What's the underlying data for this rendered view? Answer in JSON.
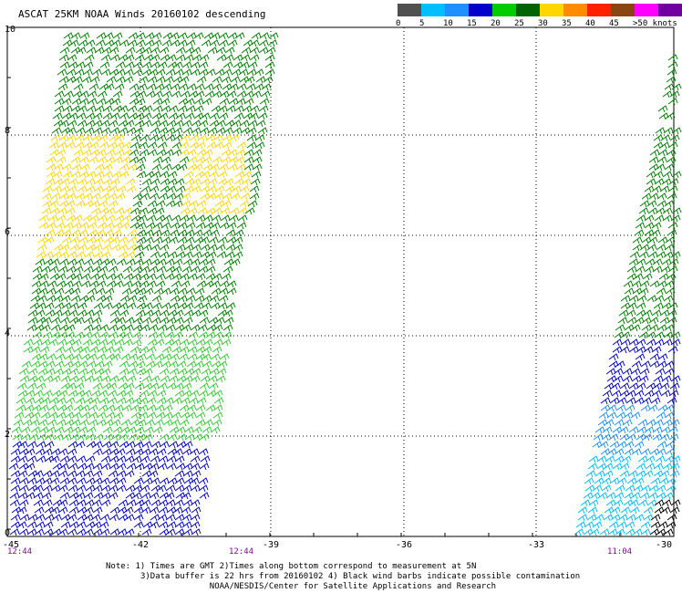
{
  "title": "ASCAT 25KM NOAA Winds 20160102 descending",
  "legend": {
    "colors": [
      "#505050",
      "#00bfff",
      "#1e90ff",
      "#0000cd",
      "#00cc00",
      "#006400",
      "#ffd700",
      "#ff8c00",
      "#ff2000",
      "#8b4513",
      "#ff00ff",
      "#7000a0"
    ],
    "labels": [
      "0",
      "5",
      "10",
      "15",
      "20",
      "25",
      "30",
      "35",
      "40",
      "45",
      ">50 knots"
    ]
  },
  "x_ticks": [
    "-45",
    "-42",
    "-39",
    "-36",
    "-33",
    "-30"
  ],
  "y_ticks": [
    "10",
    "8",
    "6",
    "4",
    "2",
    "0"
  ],
  "times": [
    "12:44",
    "12:44",
    "11:04"
  ],
  "note": {
    "line1": "Note: 1) Times are GMT 2)Times along bottom correspond to measurement at 5N",
    "line2": "3)Data buffer is 22 hrs from 20160102 4) Black wind barbs indicate possible contamination",
    "line3": "NOAA/NESDIS/Center for Satellite Applications and Research"
  }
}
